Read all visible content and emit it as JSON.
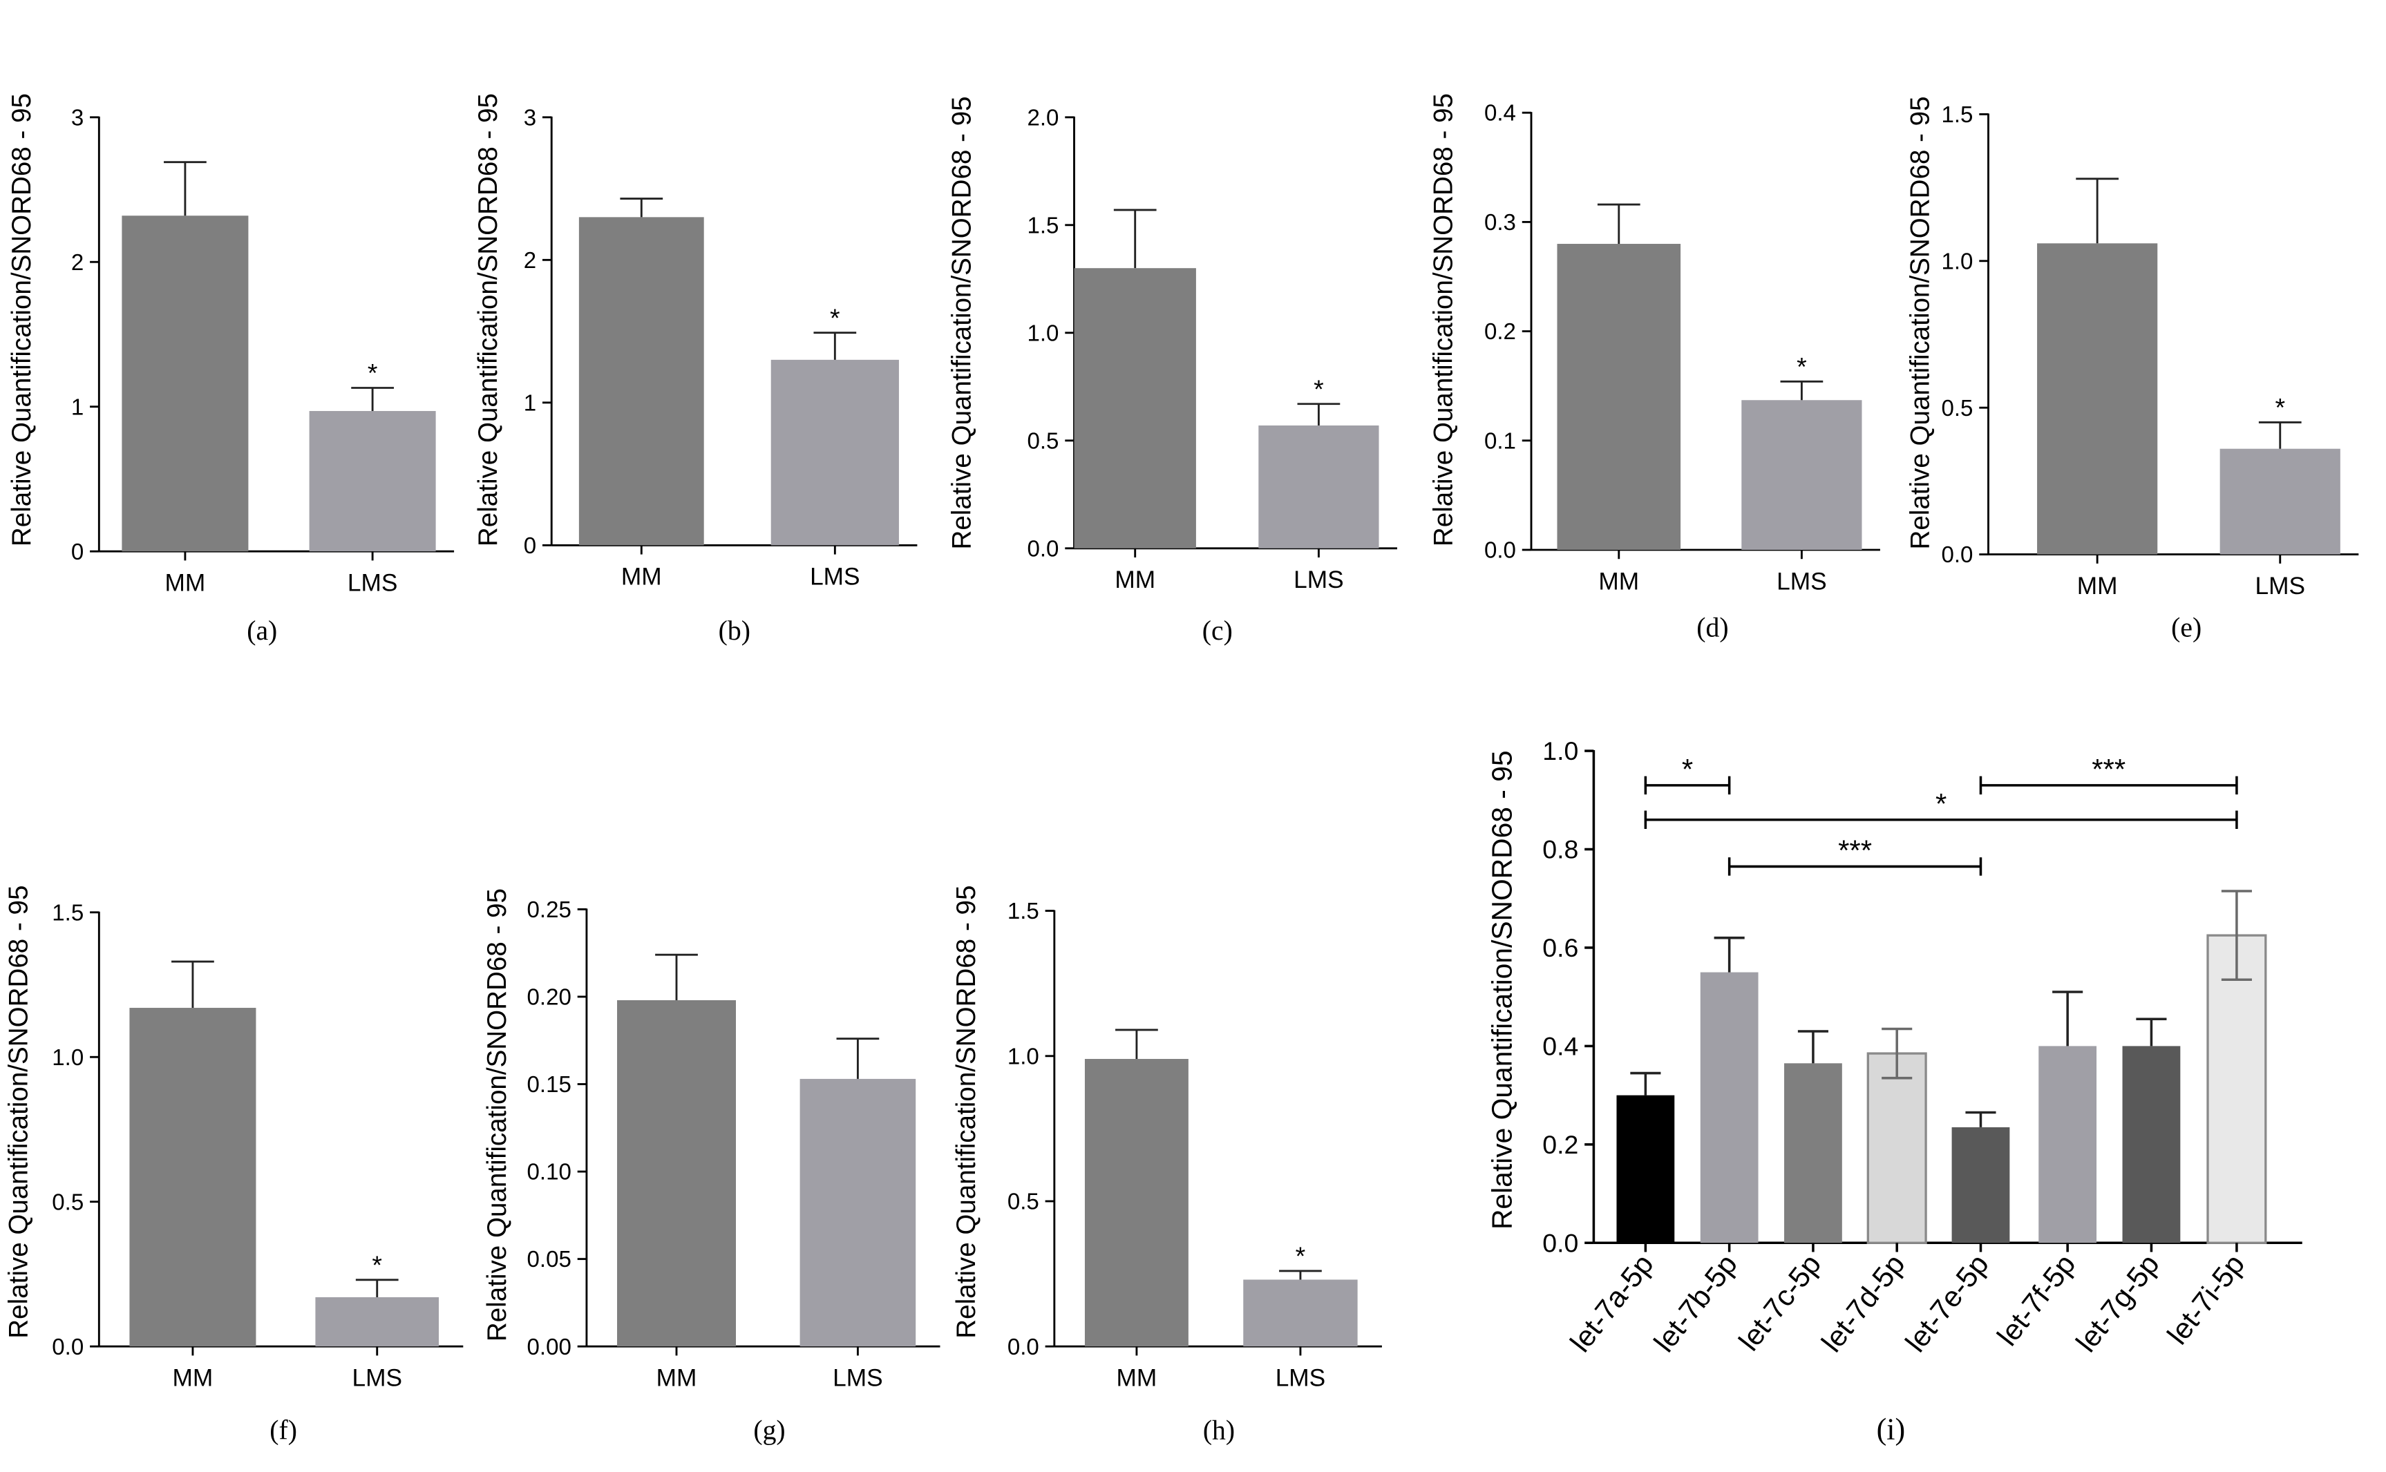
{
  "figure": {
    "y_axis_label": "Relative Quantification/SNORD68 - 95"
  },
  "chart_data": [
    {
      "type": "bar",
      "panel_label": "(a)",
      "ylabel": "Relative Quantification/SNORD68 - 95",
      "categories": [
        "MM",
        "LMS"
      ],
      "values": [
        2.32,
        0.97
      ],
      "errors": [
        0.37,
        0.16
      ],
      "colors": [
        "#7f7f7f",
        "#a09fa6"
      ],
      "significance": [
        "",
        "*"
      ],
      "ylim": [
        0,
        3
      ],
      "yticks": [
        "0",
        "1",
        "2",
        "3"
      ]
    },
    {
      "type": "bar",
      "panel_label": "(b)",
      "ylabel": "Relative Quantification/SNORD68 - 95",
      "categories": [
        "MM",
        "LMS"
      ],
      "values": [
        2.3,
        1.3
      ],
      "errors": [
        0.13,
        0.19
      ],
      "colors": [
        "#7f7f7f",
        "#a09fa6"
      ],
      "significance": [
        "",
        "*"
      ],
      "ylim": [
        0,
        3
      ],
      "yticks": [
        "0",
        "1",
        "2",
        "3"
      ]
    },
    {
      "type": "bar",
      "panel_label": "(c)",
      "ylabel": "Relative Quantification/SNORD68 - 95",
      "categories": [
        "MM",
        "LMS"
      ],
      "values": [
        1.3,
        0.57
      ],
      "errors": [
        0.27,
        0.1
      ],
      "colors": [
        "#7f7f7f",
        "#a09fa6"
      ],
      "significance": [
        "",
        "*"
      ],
      "ylim": [
        0,
        2
      ],
      "yticks": [
        "0.0",
        "0.5",
        "1.0",
        "1.5",
        "2.0"
      ]
    },
    {
      "type": "bar",
      "panel_label": "(d)",
      "ylabel": "Relative Quantification/SNORD68 - 95",
      "categories": [
        "MM",
        "LMS"
      ],
      "values": [
        0.28,
        0.137
      ],
      "errors": [
        0.036,
        0.017
      ],
      "colors": [
        "#7f7f7f",
        "#a09fa6"
      ],
      "significance": [
        "",
        "*"
      ],
      "ylim": [
        0,
        0.4
      ],
      "yticks": [
        "0.0",
        "0.1",
        "0.2",
        "0.3",
        "0.4"
      ]
    },
    {
      "type": "bar",
      "panel_label": "(e)",
      "ylabel": "Relative Quantification/SNORD68 - 95",
      "categories": [
        "MM",
        "LMS"
      ],
      "values": [
        1.06,
        0.36
      ],
      "errors": [
        0.22,
        0.09
      ],
      "colors": [
        "#7f7f7f",
        "#a09fa6"
      ],
      "significance": [
        "",
        "*"
      ],
      "ylim": [
        0,
        1.5
      ],
      "yticks": [
        "0.0",
        "0.5",
        "1.0",
        "1.5"
      ]
    },
    {
      "type": "bar",
      "panel_label": "(f)",
      "ylabel": "Relative Quantification/SNORD68 - 95",
      "categories": [
        "MM",
        "LMS"
      ],
      "values": [
        1.17,
        0.17
      ],
      "errors": [
        0.16,
        0.06
      ],
      "colors": [
        "#7f7f7f",
        "#a09fa6"
      ],
      "significance": [
        "",
        "*"
      ],
      "ylim": [
        0,
        1.5
      ],
      "yticks": [
        "0.0",
        "0.5",
        "1.0",
        "1.5"
      ]
    },
    {
      "type": "bar",
      "panel_label": "(g)",
      "ylabel": "Relative Quantification/SNORD68 - 95",
      "categories": [
        "MM",
        "LMS"
      ],
      "values": [
        0.198,
        0.153
      ],
      "errors": [
        0.026,
        0.023
      ],
      "colors": [
        "#7f7f7f",
        "#a09fa6"
      ],
      "significance": [
        "",
        ""
      ],
      "ylim": [
        0,
        0.25
      ],
      "yticks": [
        "0.00",
        "0.05",
        "0.10",
        "0.15",
        "0.20",
        "0.25"
      ]
    },
    {
      "type": "bar",
      "panel_label": "(h)",
      "ylabel": "Relative Quantification/SNORD68 - 95",
      "categories": [
        "MM",
        "LMS"
      ],
      "values": [
        0.99,
        0.23
      ],
      "errors": [
        0.1,
        0.03
      ],
      "colors": [
        "#7f7f7f",
        "#a09fa6"
      ],
      "significance": [
        "",
        "*"
      ],
      "ylim": [
        0,
        1.5
      ],
      "yticks": [
        "0.0",
        "0.5",
        "1.0",
        "1.5"
      ]
    },
    {
      "type": "bar",
      "panel_label": "(i)",
      "ylabel": "Relative Quantification/SNORD68 - 95",
      "categories": [
        "let-7a-5p",
        "let-7b-5p",
        "let-7c-5p",
        "let-7d-5p",
        "let-7e-5p",
        "let-7f-5p",
        "let-7g-5p",
        "let-7i-5p"
      ],
      "values": [
        0.3,
        0.55,
        0.365,
        0.385,
        0.235,
        0.4,
        0.4,
        0.625
      ],
      "errors": [
        0.045,
        0.07,
        0.065,
        0.05,
        0.03,
        0.11,
        0.055,
        0.09
      ],
      "error_both": [
        false,
        false,
        false,
        true,
        false,
        false,
        false,
        true
      ],
      "colors": [
        "#000000",
        "#a09fa6",
        "#7f7f7f",
        "#d8d8d8",
        "#595959",
        "#a09fa6",
        "#595959",
        "#e8e8e8"
      ],
      "ylim": [
        0,
        1
      ],
      "yticks": [
        "0.0",
        "0.2",
        "0.4",
        "0.6",
        "0.8",
        "1.0"
      ],
      "comparisons": [
        {
          "from": 0,
          "to": 1,
          "y": 0.93,
          "label": "*"
        },
        {
          "from": 4,
          "to": 7,
          "y": 0.93,
          "label": "***"
        },
        {
          "from": 0,
          "to": 7,
          "y": 0.86,
          "label": "*"
        },
        {
          "from": 1,
          "to": 4,
          "y": 0.765,
          "label": "***"
        }
      ]
    }
  ]
}
